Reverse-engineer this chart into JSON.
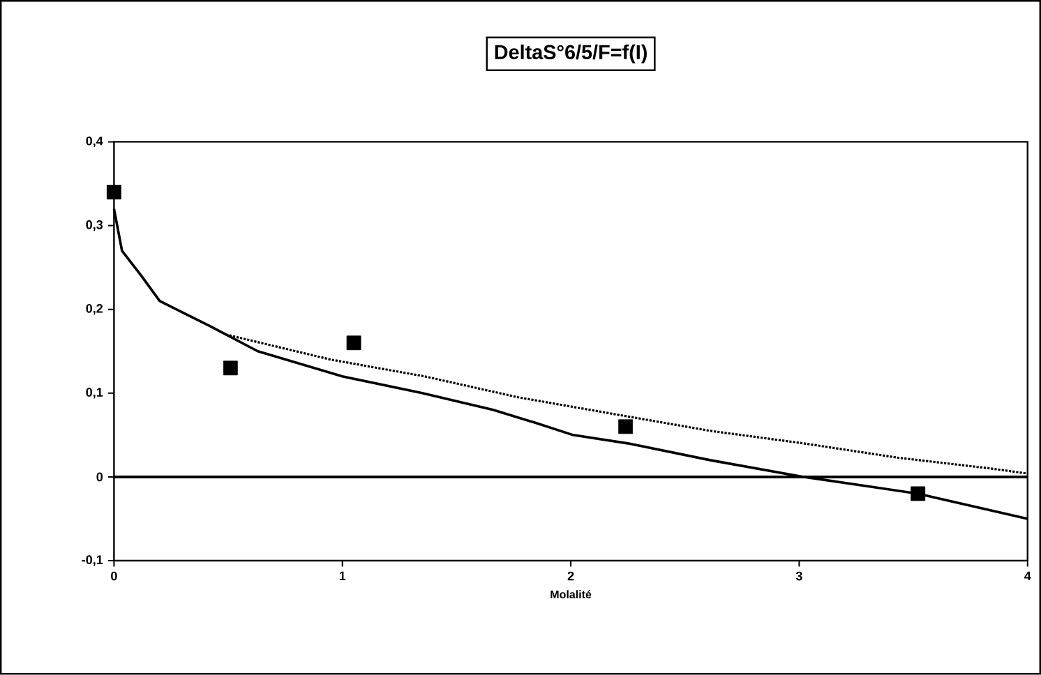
{
  "chart_data": {
    "type": "line",
    "title": "DeltaS°6/5/F=f(I)",
    "xlabel": "Molalité",
    "xlim": [
      0,
      4
    ],
    "xticks": [
      0,
      1,
      2,
      3,
      4
    ],
    "ylim": [
      -0.1,
      0.4
    ],
    "yticks": [
      {
        "value": -0.1,
        "label": "-0,1"
      },
      {
        "value": 0,
        "label": "0"
      },
      {
        "value": 0.1,
        "label": "0,1"
      },
      {
        "value": 0.2,
        "label": "0,2"
      },
      {
        "value": 0.3,
        "label": "0,3"
      },
      {
        "value": 0.4,
        "label": "0,4"
      }
    ],
    "grid": false,
    "ref_lines": [
      {
        "axis": "y",
        "value": 0,
        "color": "#000000"
      }
    ],
    "series": [
      {
        "type": "scatter",
        "color": "#000000",
        "marker": "square",
        "x": [
          0,
          0.51,
          1.05,
          2.24,
          3.52
        ],
        "values": [
          0.34,
          0.13,
          0.16,
          0.06,
          -0.02
        ]
      },
      {
        "color": "#000000",
        "line_style": "solid",
        "x": [
          0,
          0.035,
          0.12,
          0.2,
          0.42,
          0.63,
          1.0,
          1.35,
          1.66,
          1.84,
          2.01,
          2.25,
          2.61,
          3.02,
          3.52,
          4.0
        ],
        "values": [
          0.32,
          0.27,
          0.24,
          0.21,
          0.18,
          0.15,
          0.12,
          0.1,
          0.08,
          0.065,
          0.05,
          0.04,
          0.02,
          0.0,
          -0.02,
          -0.05
        ]
      },
      {
        "color": "#000000",
        "line_style": "dotted",
        "x": [
          0.49,
          0.95,
          1.36,
          1.77,
          2.19,
          2.61,
          3.02,
          3.43,
          3.84,
          4.0
        ],
        "values": [
          0.17,
          0.14,
          0.12,
          0.095,
          0.075,
          0.055,
          0.04,
          0.023,
          0.01,
          0.004
        ]
      }
    ]
  }
}
